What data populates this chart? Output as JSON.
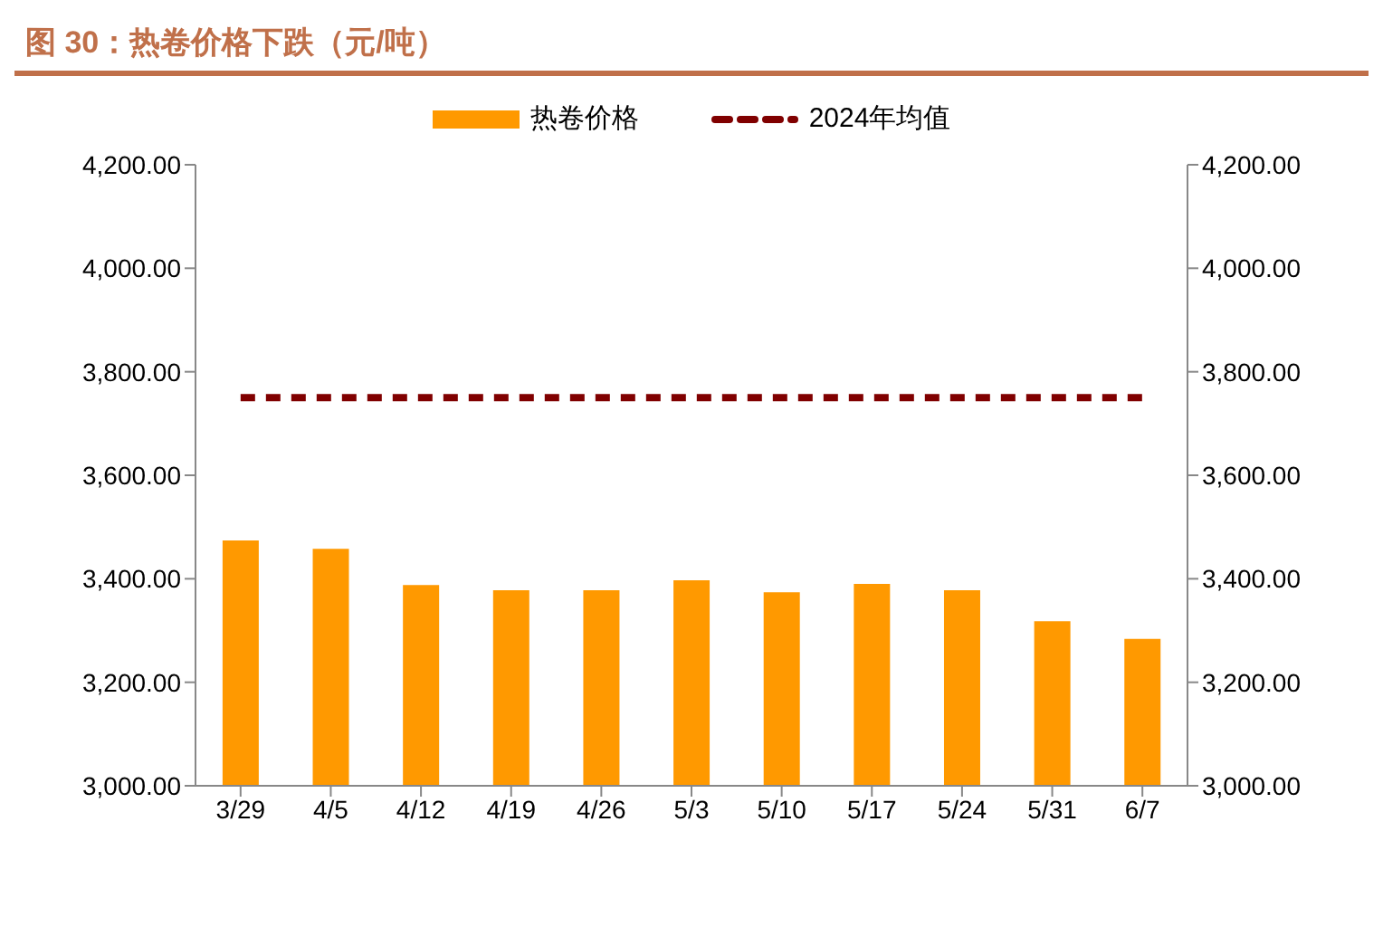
{
  "chart_data": {
    "type": "bar",
    "title": "图 30：热卷价格下跌（元/吨）",
    "categories": [
      "3/29",
      "4/5",
      "4/12",
      "4/19",
      "4/26",
      "5/3",
      "5/10",
      "5/17",
      "5/24",
      "5/31",
      "6/7"
    ],
    "series": [
      {
        "name": "热卷价格",
        "color": "#ff9900",
        "values": [
          3474,
          3458,
          3388,
          3378,
          3378,
          3397,
          3374,
          3390,
          3378,
          3318,
          3284
        ]
      },
      {
        "name": "2024年均值",
        "type": "line",
        "color": "#800000",
        "line_style": "dashed",
        "values": [
          3750,
          3750,
          3750,
          3750,
          3750,
          3750,
          3750,
          3750,
          3750,
          3750,
          3750
        ]
      }
    ],
    "ylim": [
      3000,
      4200
    ],
    "yticks": [
      {
        "value": 3000,
        "label": "3,000.00"
      },
      {
        "value": 3200,
        "label": "3,200.00"
      },
      {
        "value": 3400,
        "label": "3,400.00"
      },
      {
        "value": 3600,
        "label": "3,600.00"
      },
      {
        "value": 3800,
        "label": "3,800.00"
      },
      {
        "value": 4000,
        "label": "4,000.00"
      },
      {
        "value": 4200,
        "label": "4,200.00"
      }
    ],
    "y2lim": [
      3000,
      4200
    ],
    "y2ticks": [
      {
        "value": 3000,
        "label": "3,000.00"
      },
      {
        "value": 3200,
        "label": "3,200.00"
      },
      {
        "value": 3400,
        "label": "3,400.00"
      },
      {
        "value": 3600,
        "label": "3,600.00"
      },
      {
        "value": 3800,
        "label": "3,800.00"
      },
      {
        "value": 4000,
        "label": "4,000.00"
      },
      {
        "value": 4200,
        "label": "4,200.00"
      }
    ],
    "grid": false,
    "legend": "top"
  }
}
